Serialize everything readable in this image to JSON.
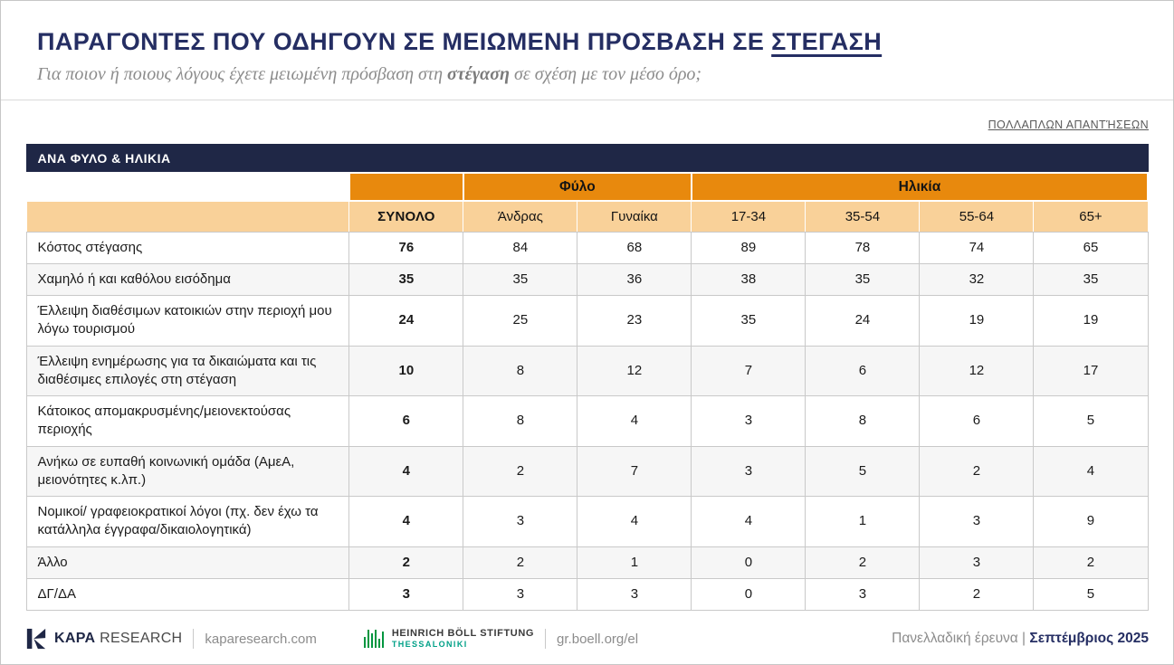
{
  "header": {
    "title_main": "ΠΑΡΑΓΟΝΤΕΣ ΠΟΥ ΟΔΗΓΟΥΝ ΣΕ ΜΕΙΩΜΕΝΗ ΠΡΟΣΒΑΣΗ ΣΕ ",
    "title_underlined": "ΣΤΕΓΑΣΗ",
    "subtitle_prefix": "Για ποιον ή ποιους λόγους έχετε μειωμένη πρόσβαση στη ",
    "subtitle_bold": "στέγαση",
    "subtitle_suffix": " σε σχέση με τον μέσο όρο;",
    "note": "ΠΟΛΛΑΠΛΩΝ ΑΠΑΝΤΉΣΕΩΝ"
  },
  "chart_data": {
    "type": "table",
    "title": "ΠΑΡΑΓΟΝΤΕΣ ΠΟΥ ΟΔΗΓΟΥΝ ΣΕ ΜΕΙΩΜΕΝΗ ΠΡΟΣΒΑΣΗ ΣΕ ΣΤΕΓΑΣΗ",
    "section_title": "ΑΝΑ ΦΥΛΟ & ΗΛΙΚΙΑ",
    "groups": [
      {
        "label": "Φύλο",
        "span": 2
      },
      {
        "label": "Ηλικία",
        "span": 4
      }
    ],
    "columns": [
      "ΣΥΝΟΛΟ",
      "Άνδρας",
      "Γυναίκα",
      "17-34",
      "35-54",
      "55-64",
      "65+"
    ],
    "rows": [
      {
        "label": "Κόστος στέγασης",
        "values": [
          76,
          84,
          68,
          89,
          78,
          74,
          65
        ]
      },
      {
        "label": "Χαμηλό ή και καθόλου εισόδημα",
        "values": [
          35,
          35,
          36,
          38,
          35,
          32,
          35
        ]
      },
      {
        "label": "Έλλειψη διαθέσιμων κατοικιών στην περιοχή μου λόγω τουρισμού",
        "values": [
          24,
          25,
          23,
          35,
          24,
          19,
          19
        ]
      },
      {
        "label": "Έλλειψη ενημέρωσης για τα δικαιώματα και τις διαθέσιμες επιλογές στη στέγαση",
        "values": [
          10,
          8,
          12,
          7,
          6,
          12,
          17
        ]
      },
      {
        "label": "Κάτοικος απομακρυσμένης/μειονεκτούσας περιοχής",
        "values": [
          6,
          8,
          4,
          3,
          8,
          6,
          5
        ]
      },
      {
        "label": "Ανήκω σε ευπαθή κοινωνική ομάδα (ΑμεΑ, μειονότητες κ.λπ.)",
        "values": [
          4,
          2,
          7,
          3,
          5,
          2,
          4
        ]
      },
      {
        "label": "Νομικοί/ γραφειοκρατικοί λόγοι (πχ. δεν έχω τα κατάλληλα έγγραφα/δικαιολογητικά)",
        "values": [
          4,
          3,
          4,
          4,
          1,
          3,
          9
        ]
      },
      {
        "label": "Άλλο",
        "values": [
          2,
          2,
          1,
          0,
          2,
          3,
          2
        ]
      },
      {
        "label": "ΔΓ/ΔΑ",
        "values": [
          3,
          3,
          3,
          0,
          3,
          2,
          5
        ]
      }
    ]
  },
  "footer": {
    "kapa_bold": "KAPA",
    "kapa_light": "RESEARCH",
    "kapa_url": "kaparesearch.com",
    "boell_line1": "HEINRICH BÖLL STIFTUNG",
    "boell_line2": "THESSALONIKI",
    "boell_url": "gr.boell.org/el",
    "right_prefix": "Πανελλαδική έρευνα | ",
    "right_bold": "Σεπτέμβριος 2025"
  },
  "colors": {
    "navy_title": "#252E63",
    "navy_bar": "#1F2746",
    "orange": "#E8890D",
    "peach": "#F9D199",
    "boell_green": "#00963F",
    "boell_teal": "#00A087"
  }
}
